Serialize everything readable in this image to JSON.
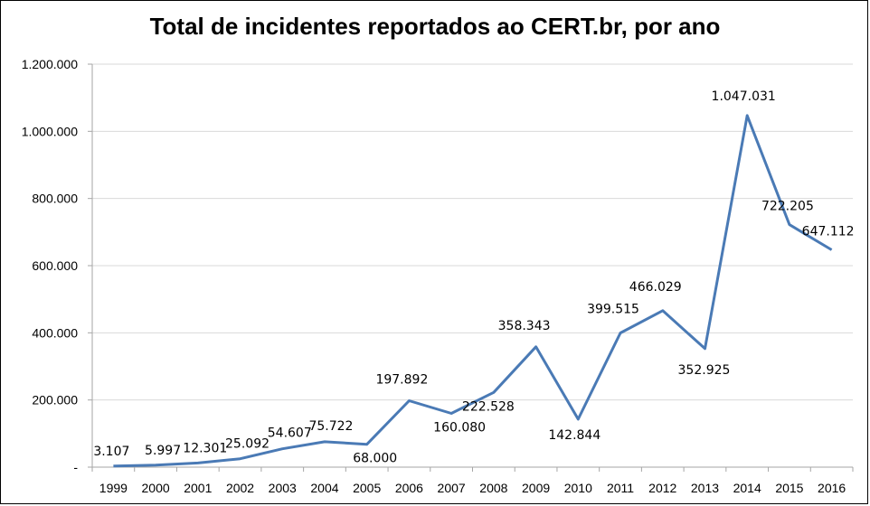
{
  "chart_data": {
    "type": "line",
    "title": "Total de incidentes reportados ao CERT.br, por ano",
    "categories": [
      "1999",
      "2000",
      "2001",
      "2002",
      "2003",
      "2004",
      "2005",
      "2006",
      "2007",
      "2008",
      "2009",
      "2010",
      "2011",
      "2012",
      "2013",
      "2014",
      "2015",
      "2016"
    ],
    "series": [
      {
        "values": [
          3107,
          5997,
          12301,
          25092,
          54607,
          75722,
          68000,
          197892,
          160080,
          222528,
          358343,
          142844,
          399515,
          466029,
          352925,
          1047031,
          722205,
          647112
        ],
        "labels": [
          "3.107",
          "5.997",
          "12.301",
          "25.092",
          "54.607",
          "75.722",
          "68.000",
          "197.892",
          "160.080",
          "222.528",
          "358.343",
          "142.844",
          "399.515",
          "466.029",
          "352.925",
          "1.047.031",
          "722.205",
          "647.112"
        ],
        "color": "#4a7ab5"
      }
    ],
    "ylim": [
      0,
      1200000
    ],
    "yticks": [
      0,
      200000,
      400000,
      600000,
      800000,
      1000000,
      1200000
    ],
    "ytick_labels": [
      "-",
      "200.000",
      "400.000",
      "600.000",
      "800.000",
      "1.000.000",
      "1.200.000"
    ],
    "grid": true,
    "gridline_color": "#d9d9d9",
    "xlabel": "",
    "ylabel": ""
  }
}
